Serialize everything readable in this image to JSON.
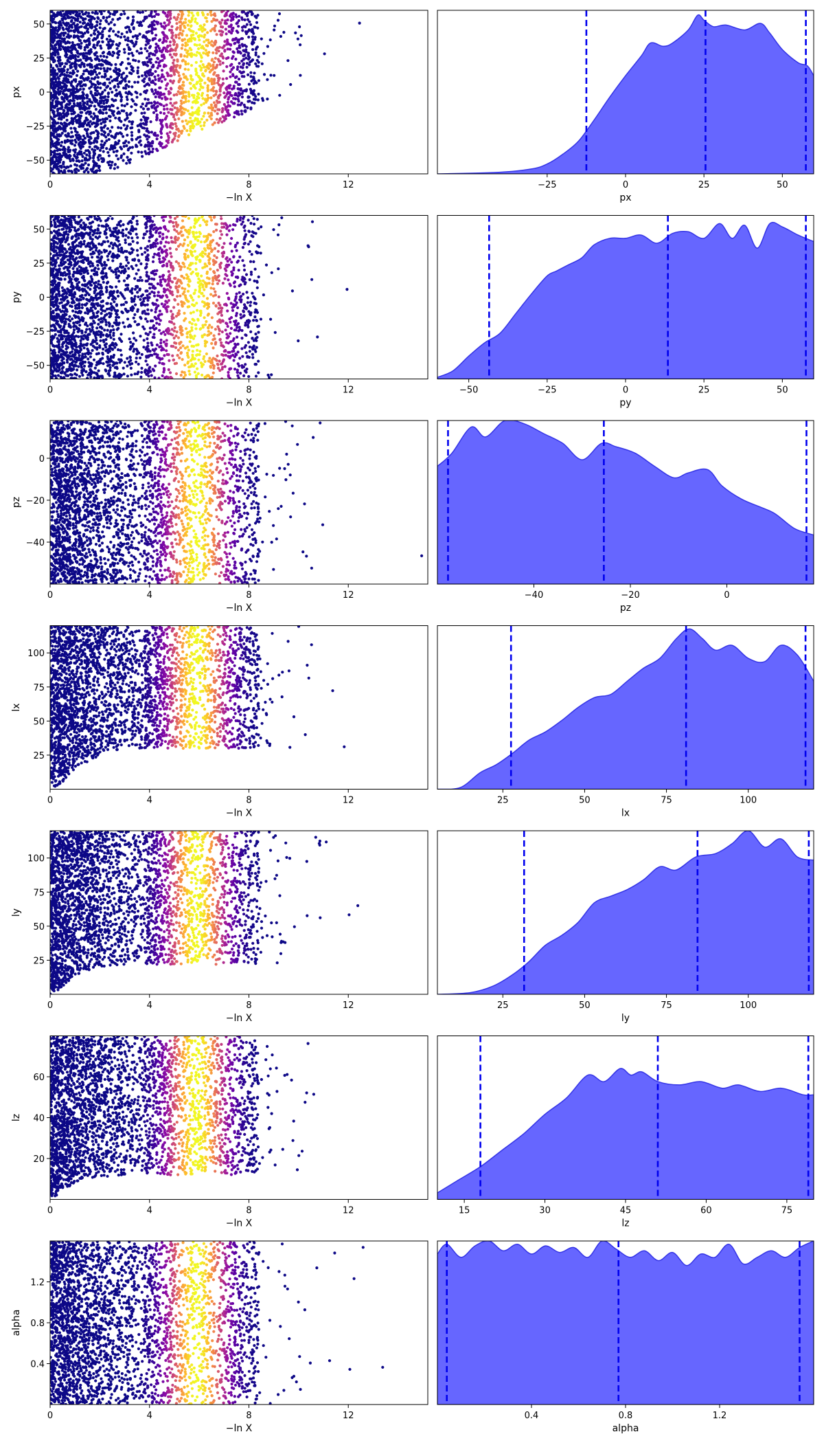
{
  "figure": {
    "kind": "dynesty trace plot"
  },
  "colors": {
    "kde_fill": "#6666ff",
    "kde_edge": "#3333e6",
    "quantile_line": "#0000ee",
    "colormap": "plasma"
  },
  "chart_data": [
    {
      "type": "scatter",
      "param": "px",
      "xlabel": "−ln X",
      "ylabel": "px",
      "xlim": [
        0,
        15.2
      ],
      "ylim": [
        -60,
        60
      ],
      "xticks": [
        0,
        4,
        8,
        12
      ],
      "yticks": [
        -50,
        -25,
        0,
        25,
        50
      ],
      "y_tick_labels": [
        "−50",
        "−25",
        "0",
        "25",
        "50"
      ],
      "lower_envelope": [
        [
          0,
          -60
        ],
        [
          1.5,
          -60
        ],
        [
          2.5,
          -57
        ],
        [
          3.5,
          -50
        ],
        [
          4.5,
          -42
        ],
        [
          5.5,
          -32
        ],
        [
          6.5,
          -25
        ],
        [
          7.5,
          -18
        ],
        [
          8.5,
          -10
        ],
        [
          9.5,
          0
        ],
        [
          11,
          10
        ],
        [
          13,
          20
        ],
        [
          15,
          25
        ]
      ],
      "colormap_peak_lnX": 5.9,
      "point_density": "dense",
      "note": "points colored by importance weight"
    },
    {
      "type": "area",
      "param": "px",
      "xlabel": "px",
      "xlim": [
        -60,
        60
      ],
      "xticks": [
        -25,
        0,
        25,
        50
      ],
      "x_tick_labels": [
        "−25",
        "0",
        "25",
        "50"
      ],
      "quantiles": [
        -12.5,
        25.5,
        57.5
      ],
      "kde_x": [
        -60,
        -40,
        -30,
        -25,
        -20,
        -15,
        -10,
        -5,
        0,
        5,
        8,
        12,
        15,
        20,
        23,
        25,
        28,
        32,
        38,
        43,
        46,
        50,
        55,
        58,
        60
      ],
      "kde_y": [
        0.0,
        0.01,
        0.03,
        0.06,
        0.12,
        0.2,
        0.33,
        0.47,
        0.6,
        0.72,
        0.8,
        0.78,
        0.8,
        0.88,
        0.97,
        0.94,
        0.9,
        0.91,
        0.88,
        0.92,
        0.86,
        0.76,
        0.68,
        0.66,
        0.6
      ]
    },
    {
      "type": "scatter",
      "param": "py",
      "xlabel": "−ln X",
      "ylabel": "py",
      "xlim": [
        0,
        15.2
      ],
      "ylim": [
        -60,
        60
      ],
      "xticks": [
        0,
        4,
        8,
        12
      ],
      "yticks": [
        -50,
        -25,
        0,
        25,
        50
      ],
      "y_tick_labels": [
        "−50",
        "−25",
        "0",
        "25",
        "50"
      ],
      "lower_envelope": [
        [
          0,
          -60
        ],
        [
          15,
          -60
        ]
      ],
      "colormap_peak_lnX": 5.9,
      "point_density": "dense",
      "note": "points colored by importance weight"
    },
    {
      "type": "area",
      "param": "py",
      "xlabel": "py",
      "xlim": [
        -60,
        60
      ],
      "xticks": [
        -50,
        -25,
        0,
        25,
        50
      ],
      "x_tick_labels": [
        "−50",
        "−25",
        "0",
        "25",
        "50"
      ],
      "quantiles": [
        -43.5,
        13.5,
        57.5
      ],
      "kde_x": [
        -60,
        -55,
        -50,
        -45,
        -40,
        -35,
        -30,
        -25,
        -22,
        -18,
        -14,
        -10,
        -5,
        0,
        5,
        10,
        15,
        20,
        25,
        30,
        34,
        38,
        42,
        46,
        50,
        55,
        60
      ],
      "kde_y": [
        0.01,
        0.05,
        0.14,
        0.22,
        0.28,
        0.4,
        0.52,
        0.63,
        0.66,
        0.7,
        0.74,
        0.82,
        0.86,
        0.86,
        0.88,
        0.83,
        0.89,
        0.9,
        0.86,
        0.95,
        0.86,
        0.94,
        0.8,
        0.95,
        0.93,
        0.88,
        0.84
      ]
    },
    {
      "type": "scatter",
      "param": "pz",
      "xlabel": "−ln X",
      "ylabel": "pz",
      "xlim": [
        0,
        15.2
      ],
      "ylim": [
        -60,
        18
      ],
      "xticks": [
        0,
        4,
        8,
        12
      ],
      "yticks": [
        -40,
        -20,
        0
      ],
      "y_tick_labels": [
        "−40",
        "−20",
        "0"
      ],
      "lower_envelope": [
        [
          0,
          -60
        ],
        [
          15,
          -60
        ]
      ],
      "colormap_peak_lnX": 5.9,
      "point_density": "dense",
      "note": "points colored by importance weight"
    },
    {
      "type": "area",
      "param": "pz",
      "xlabel": "pz",
      "xlim": [
        -60,
        18
      ],
      "xticks": [
        -40,
        -20,
        0
      ],
      "x_tick_labels": [
        "−40",
        "−20",
        "0"
      ],
      "quantiles": [
        -57.8,
        -25.5,
        16.5
      ],
      "kde_x": [
        -60,
        -57,
        -53,
        -50,
        -46,
        -42,
        -38,
        -34,
        -30,
        -26,
        -23,
        -19,
        -15,
        -11,
        -8,
        -4,
        -1,
        3,
        7,
        10,
        14,
        18
      ],
      "kde_y": [
        0.72,
        0.8,
        0.96,
        0.9,
        1.0,
        0.98,
        0.92,
        0.86,
        0.76,
        0.86,
        0.84,
        0.8,
        0.72,
        0.65,
        0.68,
        0.7,
        0.6,
        0.52,
        0.47,
        0.43,
        0.34,
        0.3
      ]
    },
    {
      "type": "scatter",
      "param": "lx",
      "xlabel": "−ln X",
      "ylabel": "lx",
      "xlim": [
        0,
        15.2
      ],
      "ylim": [
        0,
        120
      ],
      "xticks": [
        0,
        4,
        8,
        12
      ],
      "yticks": [
        25,
        50,
        75,
        100
      ],
      "y_tick_labels": [
        "25",
        "50",
        "75",
        "100"
      ],
      "lower_envelope": [
        [
          0,
          0
        ],
        [
          0.5,
          5
        ],
        [
          1,
          15
        ],
        [
          2,
          25
        ],
        [
          3,
          30
        ],
        [
          4,
          30
        ],
        [
          15,
          30
        ]
      ],
      "colormap_peak_lnX": 5.9,
      "point_density": "dense",
      "note": "points colored by importance weight"
    },
    {
      "type": "area",
      "param": "lx",
      "xlabel": "lx",
      "xlim": [
        5,
        120
      ],
      "xticks": [
        25,
        50,
        75,
        100
      ],
      "x_tick_labels": [
        "25",
        "50",
        "75",
        "100"
      ],
      "quantiles": [
        27.5,
        81,
        117.5
      ],
      "kde_x": [
        5,
        12,
        18,
        23,
        28,
        33,
        38,
        43,
        48,
        53,
        58,
        63,
        68,
        73,
        78,
        82,
        86,
        90,
        95,
        100,
        105,
        110,
        115,
        120
      ],
      "kde_y": [
        0.0,
        0.01,
        0.1,
        0.15,
        0.22,
        0.3,
        0.35,
        0.42,
        0.5,
        0.56,
        0.58,
        0.66,
        0.74,
        0.8,
        0.92,
        0.98,
        0.92,
        0.85,
        0.88,
        0.8,
        0.78,
        0.88,
        0.82,
        0.66
      ]
    },
    {
      "type": "scatter",
      "param": "ly",
      "xlabel": "−ln X",
      "ylabel": "ly",
      "xlim": [
        0,
        15.2
      ],
      "ylim": [
        0,
        120
      ],
      "xticks": [
        0,
        4,
        8,
        12
      ],
      "yticks": [
        25,
        50,
        75,
        100
      ],
      "y_tick_labels": [
        "25",
        "50",
        "75",
        "100"
      ],
      "lower_envelope": [
        [
          0,
          0
        ],
        [
          0.5,
          5
        ],
        [
          1,
          14
        ],
        [
          2,
          20
        ],
        [
          3,
          22
        ],
        [
          15,
          22
        ]
      ],
      "colormap_peak_lnX": 5.9,
      "point_density": "dense",
      "note": "points colored by importance weight"
    },
    {
      "type": "area",
      "param": "ly",
      "xlabel": "ly",
      "xlim": [
        5,
        120
      ],
      "xticks": [
        25,
        50,
        75,
        100
      ],
      "x_tick_labels": [
        "25",
        "50",
        "75",
        "100"
      ],
      "quantiles": [
        31.5,
        84.5,
        118.5
      ],
      "kde_x": [
        5,
        15,
        22,
        28,
        33,
        38,
        43,
        48,
        53,
        58,
        63,
        68,
        73,
        78,
        84,
        90,
        95,
        100,
        105,
        110,
        115,
        120
      ],
      "kde_y": [
        0.0,
        0.01,
        0.05,
        0.12,
        0.2,
        0.3,
        0.36,
        0.44,
        0.56,
        0.6,
        0.64,
        0.7,
        0.78,
        0.76,
        0.84,
        0.86,
        0.92,
        1.0,
        0.9,
        0.95,
        0.84,
        0.82
      ]
    },
    {
      "type": "scatter",
      "param": "lz",
      "xlabel": "−ln X",
      "ylabel": "lz",
      "xlim": [
        0,
        15.2
      ],
      "ylim": [
        0,
        80
      ],
      "xticks": [
        0,
        4,
        8,
        12
      ],
      "yticks": [
        20,
        40,
        60
      ],
      "y_tick_labels": [
        "20",
        "40",
        "60"
      ],
      "lower_envelope": [
        [
          0,
          0
        ],
        [
          0.5,
          4
        ],
        [
          1,
          8
        ],
        [
          2,
          11
        ],
        [
          3,
          12
        ],
        [
          15,
          12
        ]
      ],
      "colormap_peak_lnX": 5.9,
      "point_density": "dense",
      "note": "points colored by importance weight"
    },
    {
      "type": "area",
      "param": "lz",
      "xlabel": "lz",
      "xlim": [
        10,
        80
      ],
      "xticks": [
        15,
        30,
        45,
        60,
        75
      ],
      "x_tick_labels": [
        "15",
        "30",
        "45",
        "60",
        "75"
      ],
      "quantiles": [
        18,
        51,
        79
      ],
      "kde_x": [
        10,
        14,
        18,
        22,
        26,
        30,
        34,
        38,
        41,
        44,
        46,
        48,
        51,
        55,
        59,
        63,
        66,
        70,
        74,
        78,
        80
      ],
      "kde_y": [
        0.04,
        0.12,
        0.2,
        0.3,
        0.4,
        0.52,
        0.62,
        0.76,
        0.72,
        0.8,
        0.76,
        0.78,
        0.72,
        0.7,
        0.72,
        0.68,
        0.7,
        0.66,
        0.68,
        0.64,
        0.64
      ]
    },
    {
      "type": "scatter",
      "param": "alpha",
      "xlabel": "−ln X",
      "ylabel": "alpha",
      "xlim": [
        0,
        15.2
      ],
      "ylim": [
        0,
        1.6
      ],
      "xticks": [
        0,
        4,
        8,
        12
      ],
      "yticks": [
        0.4,
        0.8,
        1.2
      ],
      "y_tick_labels": [
        "0.4",
        "0.8",
        "1.2"
      ],
      "lower_envelope": [
        [
          0,
          0
        ],
        [
          15,
          0
        ]
      ],
      "colormap_peak_lnX": 5.9,
      "point_density": "dense",
      "note": "points colored by importance weight"
    },
    {
      "type": "area",
      "param": "alpha",
      "xlabel": "alpha",
      "xlim": [
        0,
        1.6
      ],
      "xticks": [
        0.4,
        0.8,
        1.2
      ],
      "x_tick_labels": [
        "0.4",
        "0.8",
        "1.2"
      ],
      "quantiles": [
        0.04,
        0.77,
        1.54
      ],
      "kde_x": [
        0,
        0.04,
        0.1,
        0.16,
        0.22,
        0.28,
        0.34,
        0.4,
        0.46,
        0.52,
        0.58,
        0.64,
        0.7,
        0.76,
        0.82,
        0.88,
        0.94,
        1.0,
        1.06,
        1.12,
        1.18,
        1.24,
        1.3,
        1.36,
        1.42,
        1.48,
        1.54,
        1.6
      ],
      "kde_y": [
        0.92,
        0.98,
        0.9,
        0.97,
        1.0,
        0.94,
        0.98,
        0.92,
        0.97,
        0.93,
        0.96,
        0.9,
        1.0,
        0.95,
        0.9,
        0.94,
        0.88,
        0.93,
        0.85,
        0.92,
        0.9,
        0.98,
        0.86,
        0.9,
        0.94,
        0.9,
        0.96,
        1.0
      ]
    }
  ]
}
